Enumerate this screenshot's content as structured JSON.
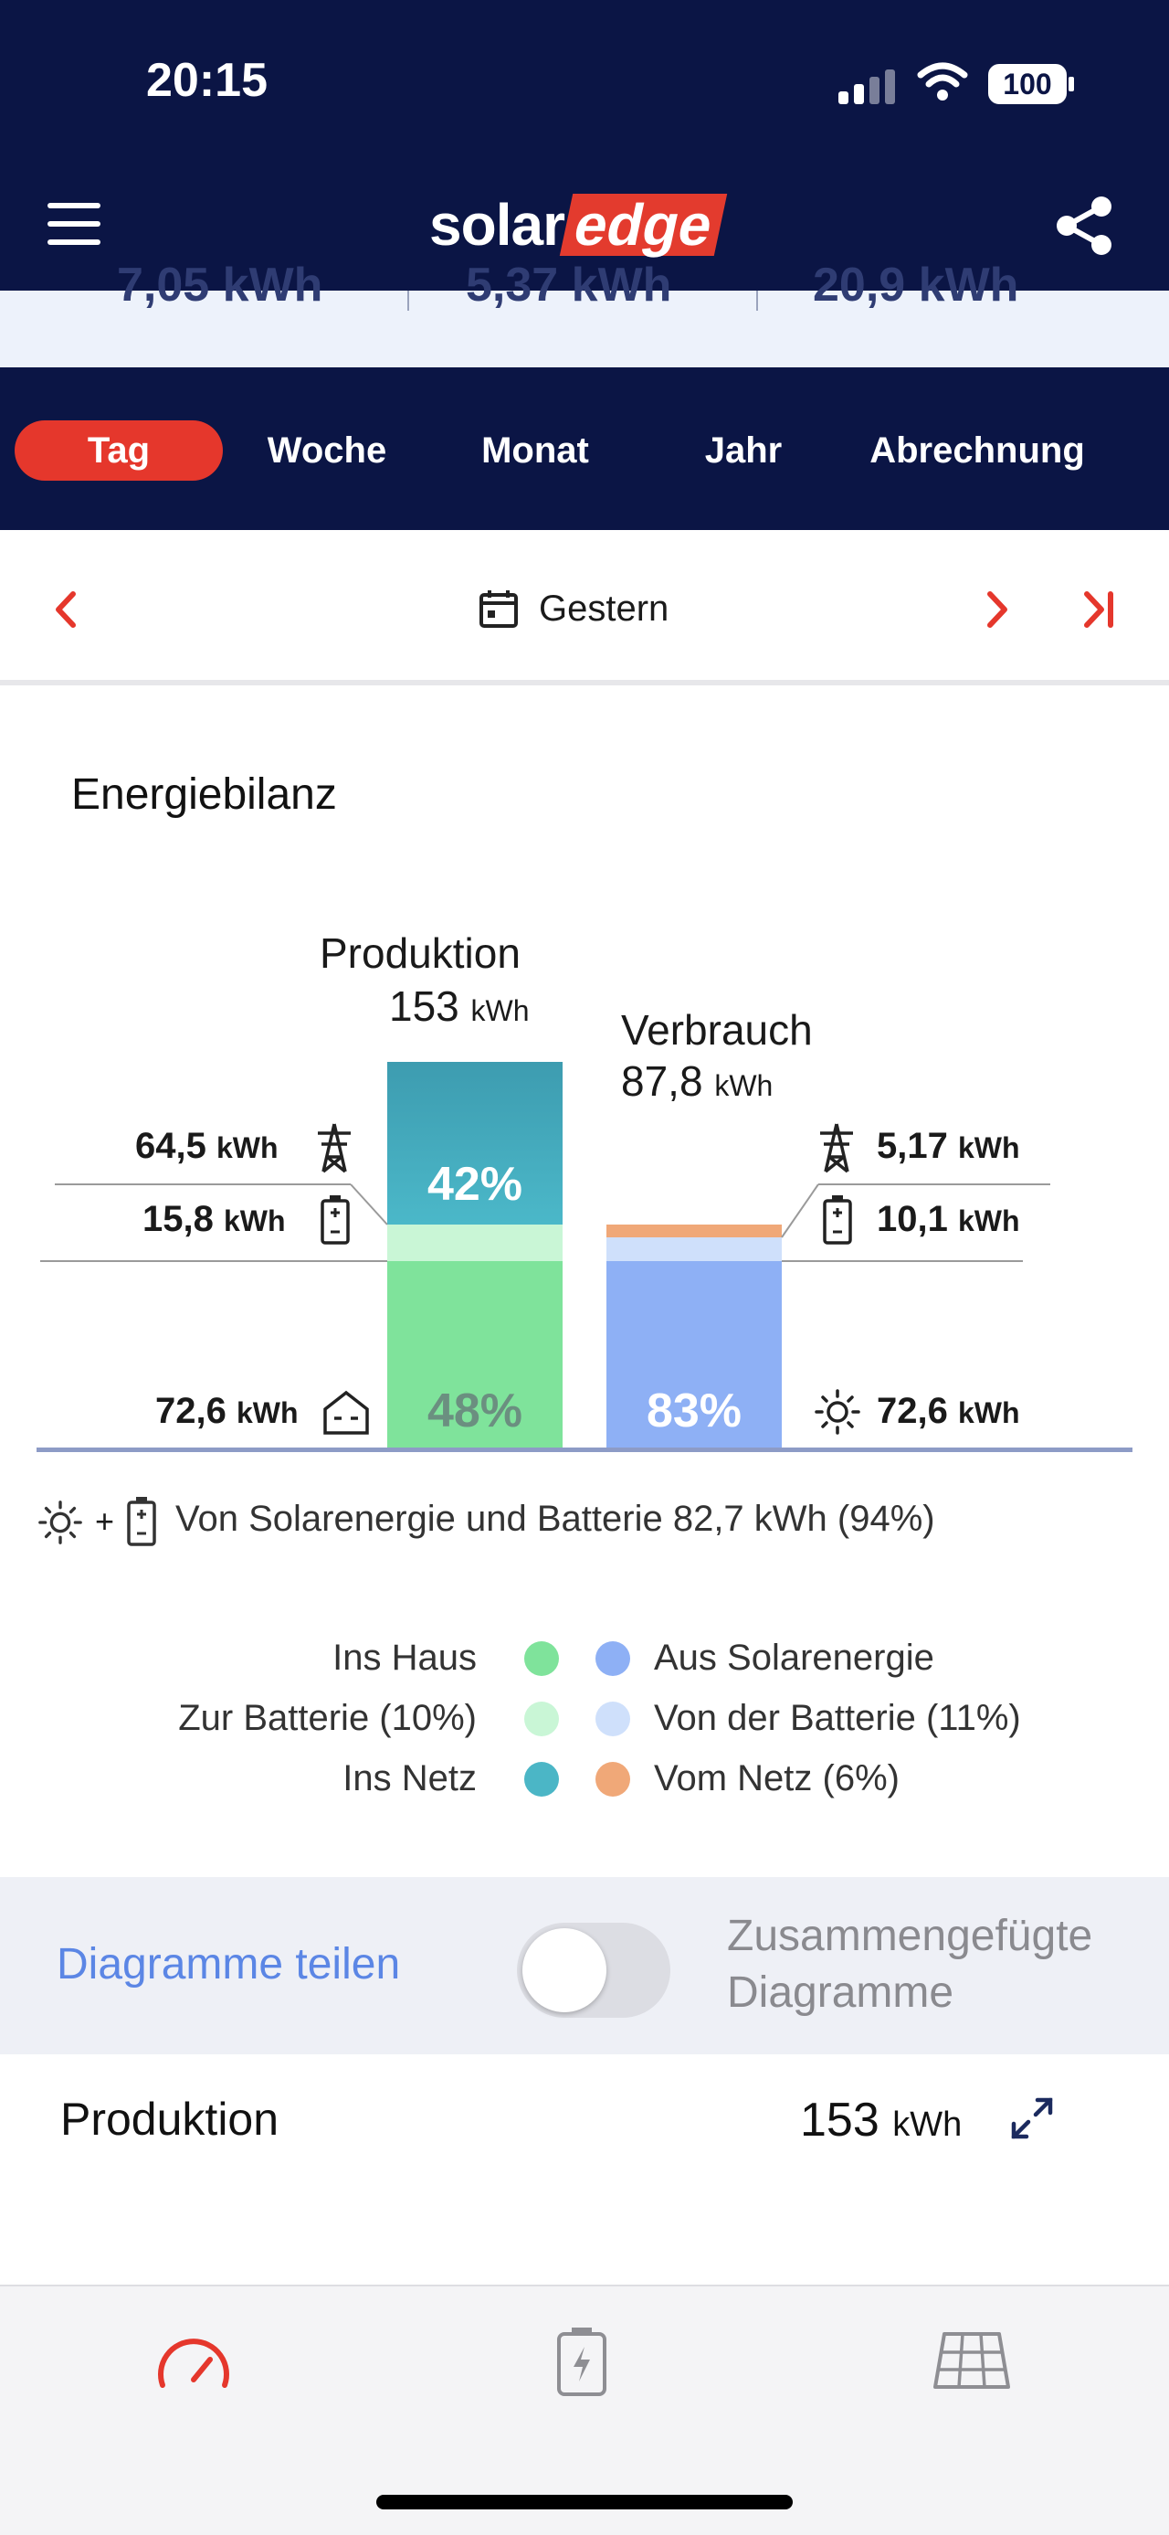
{
  "status_bar": {
    "time": "20:15",
    "battery": "100"
  },
  "header": {
    "logo_solar": "solar",
    "logo_edge": "edge"
  },
  "summary": [
    "7,05 kWh",
    "5,37 kWh",
    "20,9 kWh"
  ],
  "tabs": [
    {
      "label": "Tag",
      "active": true
    },
    {
      "label": "Woche",
      "active": false
    },
    {
      "label": "Monat",
      "active": false
    },
    {
      "label": "Jahr",
      "active": false
    },
    {
      "label": "Abrechnung",
      "active": false
    }
  ],
  "date_nav": {
    "label": "Gestern"
  },
  "energy_balance": {
    "title": "Energiebilanz",
    "production": {
      "title": "Produktion",
      "value": "153",
      "unit": "kWh",
      "grid": {
        "value": "64,5",
        "unit": "kWh"
      },
      "battery": {
        "value": "15,8",
        "unit": "kWh"
      },
      "house": {
        "value": "72,6",
        "unit": "kWh"
      },
      "pct_grid": "42%",
      "pct_house": "48%"
    },
    "consumption": {
      "title": "Verbrauch",
      "value": "87,8",
      "unit": "kWh",
      "grid": {
        "value": "5,17",
        "unit": "kWh"
      },
      "battery": {
        "value": "10,1",
        "unit": "kWh"
      },
      "solar": {
        "value": "72,6",
        "unit": "kWh"
      },
      "pct_solar": "83%"
    },
    "solar_battery_text": "Von Solarenergie und Batterie 82,7 kWh (94%)",
    "plus": "+"
  },
  "chart_data": {
    "type": "bar",
    "categories": [
      "Produktion",
      "Verbrauch"
    ],
    "series": [
      {
        "name": "Ins Haus",
        "values": [
          72.6,
          null
        ],
        "color": "#7fe39b"
      },
      {
        "name": "Zur Batterie (10%)",
        "values": [
          15.8,
          null
        ],
        "color": "#c9f6d6"
      },
      {
        "name": "Ins Netz",
        "values": [
          64.5,
          null
        ],
        "color": "#4bb6c6"
      },
      {
        "name": "Aus Solarenergie",
        "values": [
          null,
          72.6
        ],
        "color": "#8eb0f5"
      },
      {
        "name": "Von der Batterie (11%)",
        "values": [
          null,
          10.1
        ],
        "color": "#cfe0fb"
      },
      {
        "name": "Vom Netz (6%)",
        "values": [
          null,
          5.17
        ],
        "color": "#f0a878"
      }
    ],
    "totals": {
      "Produktion": 153,
      "Verbrauch": 87.8
    },
    "unit": "kWh"
  },
  "legend": {
    "left": [
      "Ins Haus",
      "Zur Batterie (10%)",
      "Ins Netz"
    ],
    "right": [
      "Aus Solarenergie",
      "Von der Batterie (11%)",
      "Vom Netz (6%)"
    ],
    "left_colors": [
      "#7fe39b",
      "#c9f6d6",
      "#4bb6c6"
    ],
    "right_colors": [
      "#8eb0f5",
      "#cfe0fb",
      "#f0a878"
    ]
  },
  "toggle_section": {
    "share_link": "Diagramme teilen",
    "merged_label": "Zusammengefügte Diagramme",
    "toggle_on": false
  },
  "production_row": {
    "title": "Produktion",
    "value": "153",
    "unit": "kWh"
  },
  "colors": {
    "navy": "#0b1545",
    "accent": "#e5372c",
    "link": "#5b86e5"
  }
}
